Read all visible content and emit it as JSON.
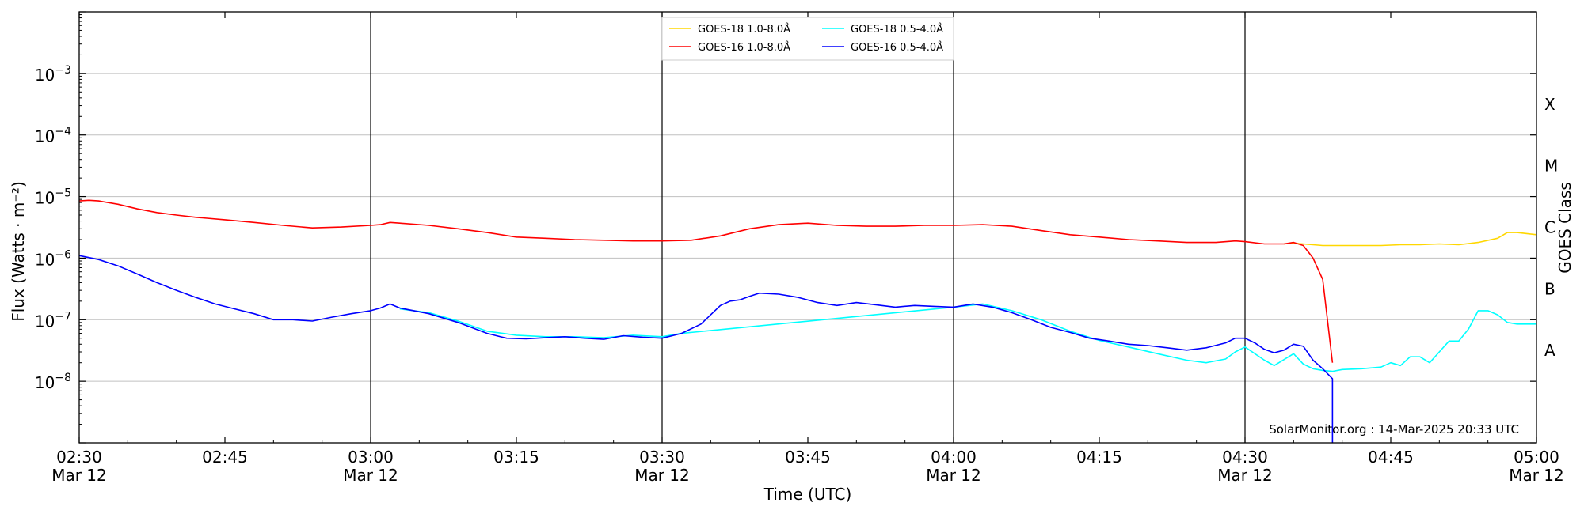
{
  "chart_data": {
    "type": "line",
    "xlabel": "Time (UTC)",
    "ylabel": "Flux (Watts · m⁻²)",
    "y2label": "GOES Class",
    "yscale": "log",
    "xlim": [
      "02:30",
      "05:00"
    ],
    "ylim": [
      1e-09,
      0.01
    ],
    "x_ticks": [
      {
        "t": "02:30",
        "line1": "02:30",
        "line2": "Mar 12"
      },
      {
        "t": "02:45",
        "line1": "02:45",
        "line2": ""
      },
      {
        "t": "03:00",
        "line1": "03:00",
        "line2": "Mar 12"
      },
      {
        "t": "03:15",
        "line1": "03:15",
        "line2": ""
      },
      {
        "t": "03:30",
        "line1": "03:30",
        "line2": "Mar 12"
      },
      {
        "t": "03:45",
        "line1": "03:45",
        "line2": ""
      },
      {
        "t": "04:00",
        "line1": "04:00",
        "line2": "Mar 12"
      },
      {
        "t": "04:15",
        "line1": "04:15",
        "line2": ""
      },
      {
        "t": "04:30",
        "line1": "04:30",
        "line2": "Mar 12"
      },
      {
        "t": "04:45",
        "line1": "04:45",
        "line2": ""
      },
      {
        "t": "05:00",
        "line1": "05:00",
        "line2": "Mar 12"
      }
    ],
    "y_ticks": [
      {
        "value": 1e-08,
        "base": "10",
        "exp": "−8"
      },
      {
        "value": 1e-07,
        "base": "10",
        "exp": "−7"
      },
      {
        "value": 1e-06,
        "base": "10",
        "exp": "−6"
      },
      {
        "value": 1e-05,
        "base": "10",
        "exp": "−5"
      },
      {
        "value": 0.0001,
        "base": "10",
        "exp": "−4"
      },
      {
        "value": 0.001,
        "base": "10",
        "exp": "−3"
      }
    ],
    "vertical_lines": [
      "03:00",
      "03:30",
      "04:00",
      "04:30"
    ],
    "goes_classes": [
      {
        "label": "A",
        "value": 3.16e-08
      },
      {
        "label": "B",
        "value": 3.16e-07
      },
      {
        "label": "C",
        "value": 3.16e-06
      },
      {
        "label": "M",
        "value": 3.16e-05
      },
      {
        "label": "X",
        "value": 0.000316
      }
    ],
    "grid": "horizontal at decades",
    "legend_position": "top-center",
    "legend_columns": [
      [
        "GOES-18 1.0-8.0Å",
        "GOES-16 1.0-8.0Å"
      ],
      [
        "GOES-18 0.5-4.0Å",
        "GOES-16 0.5-4.0Å"
      ]
    ],
    "annotation": "SolarMonitor.org : 14-Mar-2025 20:33 UTC",
    "series": [
      {
        "name": "GOES-18 1.0-8.0Å",
        "color": "#ffd700",
        "x": [
          "04:34",
          "04:35",
          "04:36",
          "04:37",
          "04:38",
          "04:40",
          "04:42",
          "04:44",
          "04:46",
          "04:48",
          "04:50",
          "04:52",
          "04:54",
          "04:56",
          "04:57",
          "04:58",
          "05:00"
        ],
        "y": [
          1.7e-06,
          1.75e-06,
          1.7e-06,
          1.65e-06,
          1.6e-06,
          1.6e-06,
          1.6e-06,
          1.6e-06,
          1.65e-06,
          1.65e-06,
          1.7e-06,
          1.65e-06,
          1.8e-06,
          2.1e-06,
          2.6e-06,
          2.6e-06,
          2.4e-06
        ]
      },
      {
        "name": "GOES-16 1.0-8.0Å",
        "color": "#ff0000",
        "x": [
          "02:30",
          "02:31",
          "02:32",
          "02:34",
          "02:36",
          "02:38",
          "02:40",
          "02:42",
          "02:45",
          "02:48",
          "02:51",
          "02:54",
          "02:57",
          "03:00",
          "03:01",
          "03:02",
          "03:03",
          "03:06",
          "03:09",
          "03:12",
          "03:15",
          "03:18",
          "03:21",
          "03:24",
          "03:27",
          "03:30",
          "03:33",
          "03:36",
          "03:39",
          "03:42",
          "03:45",
          "03:48",
          "03:51",
          "03:54",
          "03:57",
          "04:00",
          "04:03",
          "04:06",
          "04:09",
          "04:12",
          "04:15",
          "04:18",
          "04:21",
          "04:24",
          "04:27",
          "04:29",
          "04:30",
          "04:32",
          "04:34",
          "04:35",
          "04:36",
          "04:37",
          "04:38",
          "04:39"
        ],
        "y": [
          8.5e-06,
          8.7e-06,
          8.5e-06,
          7.5e-06,
          6.3e-06,
          5.5e-06,
          5e-06,
          4.6e-06,
          4.2e-06,
          3.8e-06,
          3.4e-06,
          3.1e-06,
          3.2e-06,
          3.4e-06,
          3.5e-06,
          3.8e-06,
          3.7e-06,
          3.4e-06,
          3e-06,
          2.6e-06,
          2.2e-06,
          2.1e-06,
          2e-06,
          1.95e-06,
          1.9e-06,
          1.9e-06,
          1.95e-06,
          2.3e-06,
          3e-06,
          3.5e-06,
          3.7e-06,
          3.4e-06,
          3.3e-06,
          3.3e-06,
          3.4e-06,
          3.4e-06,
          3.5e-06,
          3.3e-06,
          2.8e-06,
          2.4e-06,
          2.2e-06,
          2e-06,
          1.9e-06,
          1.8e-06,
          1.8e-06,
          1.9e-06,
          1.85e-06,
          1.7e-06,
          1.7e-06,
          1.8e-06,
          1.6e-06,
          1e-06,
          4.5e-07,
          2e-08
        ]
      },
      {
        "name": "GOES-18 0.5-4.0Å",
        "color": "#00ffff",
        "x": [
          "03:03",
          "03:06",
          "03:09",
          "03:12",
          "03:15",
          "03:18",
          "03:21",
          "03:24",
          "03:27",
          "03:30",
          "03:32",
          "04:00",
          "04:03",
          "04:06",
          "04:09",
          "04:12",
          "04:15",
          "04:18",
          "04:21",
          "04:24",
          "04:26",
          "04:28",
          "04:29",
          "04:30",
          "04:32",
          "04:33",
          "04:35",
          "04:36",
          "04:37",
          "04:38",
          "04:39",
          "04:40",
          "04:42",
          "04:44",
          "04:45",
          "04:46",
          "04:47",
          "04:48",
          "04:49",
          "04:50",
          "04:51",
          "04:52",
          "04:53",
          "04:54",
          "04:55",
          "04:56",
          "04:57",
          "04:58",
          "04:59",
          "05:00"
        ],
        "y": [
          1.5e-07,
          1.3e-07,
          9.5e-08,
          6.5e-08,
          5.6e-08,
          5.3e-08,
          5.3e-08,
          5.1e-08,
          5.6e-08,
          5.3e-08,
          6e-08,
          1.6e-07,
          1.8e-07,
          1.4e-07,
          1e-07,
          6.5e-08,
          4.6e-08,
          3.6e-08,
          2.8e-08,
          2.2e-08,
          2e-08,
          2.3e-08,
          3e-08,
          3.6e-08,
          2.2e-08,
          1.8e-08,
          2.8e-08,
          1.9e-08,
          1.6e-08,
          1.5e-08,
          1.45e-08,
          1.55e-08,
          1.6e-08,
          1.7e-08,
          2e-08,
          1.8e-08,
          2.5e-08,
          2.5e-08,
          2e-08,
          3e-08,
          4.5e-08,
          4.5e-08,
          7e-08,
          1.4e-07,
          1.4e-07,
          1.2e-07,
          9e-08,
          8.5e-08,
          8.5e-08,
          8.5e-08
        ]
      },
      {
        "name": "GOES-16 0.5-4.0Å",
        "color": "#0000ff",
        "x": [
          "02:30",
          "02:32",
          "02:34",
          "02:36",
          "02:38",
          "02:40",
          "02:42",
          "02:44",
          "02:46",
          "02:48",
          "02:50",
          "02:52",
          "02:54",
          "02:56",
          "02:58",
          "03:00",
          "03:01",
          "03:02",
          "03:03",
          "03:06",
          "03:09",
          "03:12",
          "03:14",
          "03:16",
          "03:18",
          "03:20",
          "03:22",
          "03:24",
          "03:26",
          "03:28",
          "03:30",
          "03:32",
          "03:34",
          "03:35",
          "03:36",
          "03:37",
          "03:38",
          "03:39",
          "03:40",
          "03:42",
          "03:44",
          "03:46",
          "03:48",
          "03:50",
          "03:52",
          "03:54",
          "03:56",
          "03:58",
          "04:00",
          "04:02",
          "04:04",
          "04:06",
          "04:08",
          "04:10",
          "04:12",
          "04:14",
          "04:16",
          "04:18",
          "04:20",
          "04:22",
          "04:24",
          "04:26",
          "04:28",
          "04:29",
          "04:30",
          "04:31",
          "04:32",
          "04:33",
          "04:34",
          "04:35",
          "04:36",
          "04:37",
          "04:38",
          "04:39",
          "04:39"
        ],
        "y": [
          1.1e-06,
          9.5e-07,
          7.5e-07,
          5.5e-07,
          4e-07,
          3e-07,
          2.3e-07,
          1.8e-07,
          1.5e-07,
          1.25e-07,
          1e-07,
          1e-07,
          9.5e-08,
          1.1e-07,
          1.25e-07,
          1.4e-07,
          1.55e-07,
          1.8e-07,
          1.55e-07,
          1.25e-07,
          9e-08,
          6e-08,
          5e-08,
          4.9e-08,
          5.1e-08,
          5.3e-08,
          5e-08,
          4.8e-08,
          5.5e-08,
          5.2e-08,
          5e-08,
          6e-08,
          8.5e-08,
          1.2e-07,
          1.7e-07,
          2e-07,
          2.1e-07,
          2.4e-07,
          2.7e-07,
          2.6e-07,
          2.3e-07,
          1.9e-07,
          1.7e-07,
          1.9e-07,
          1.75e-07,
          1.6e-07,
          1.7e-07,
          1.65e-07,
          1.6e-07,
          1.8e-07,
          1.6e-07,
          1.3e-07,
          1e-07,
          7.5e-08,
          6.2e-08,
          5e-08,
          4.5e-08,
          4e-08,
          3.8e-08,
          3.5e-08,
          3.2e-08,
          3.5e-08,
          4.2e-08,
          5e-08,
          5e-08,
          4.2e-08,
          3.3e-08,
          2.9e-08,
          3.2e-08,
          4e-08,
          3.7e-08,
          2.2e-08,
          1.6e-08,
          1.1e-08,
          1e-09
        ]
      }
    ]
  }
}
